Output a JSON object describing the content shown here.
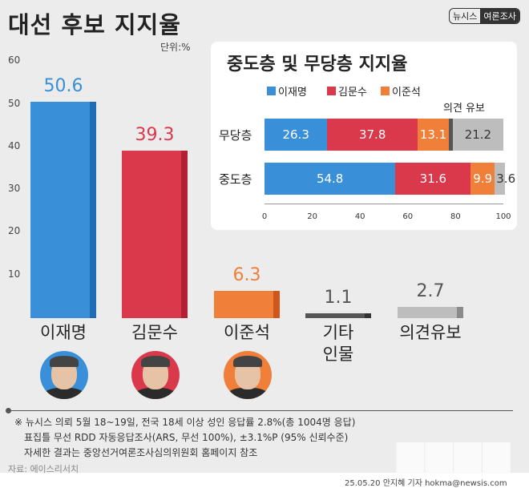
{
  "header": {
    "title": "대선 후보 지지율",
    "badge_left": "뉴시스",
    "badge_right": "여론조사",
    "unit": "단위:%"
  },
  "colors": {
    "lee": "#3a8fd9",
    "kim": "#d9394b",
    "junseok": "#f07f3a",
    "other": "#555555",
    "undecided": "#bdbdbd"
  },
  "chart_data": [
    {
      "type": "bar",
      "title": "대선 후보 지지율",
      "ylabel": "단위:%",
      "ylim": [
        0,
        60
      ],
      "yticks": [
        10,
        20,
        30,
        40,
        50,
        60
      ],
      "categories": [
        "이재명",
        "김문수",
        "이준석",
        "기타 인물",
        "의견유보"
      ],
      "values": [
        50.6,
        39.3,
        6.3,
        1.1,
        2.7
      ],
      "labels": [
        "50.6",
        "39.3",
        "6.3",
        "1.1",
        "2.7"
      ]
    },
    {
      "type": "bar",
      "orientation": "horizontal",
      "stacked": true,
      "title": "중도층 및 무당층 지지율",
      "xlim": [
        0,
        100
      ],
      "xticks": [
        "0",
        "20",
        "40",
        "60",
        "80",
        "100"
      ],
      "categories": [
        "무당층",
        "중도층"
      ],
      "legend": [
        "이재명",
        "김문수",
        "이준석"
      ],
      "extra_label": "의견 유보",
      "series": [
        {
          "name": "이재명",
          "values": [
            26.3,
            54.8
          ]
        },
        {
          "name": "김문수",
          "values": [
            37.8,
            31.6
          ]
        },
        {
          "name": "이준석",
          "values": [
            13.1,
            9.9
          ]
        },
        {
          "values": [
            1.6,
            0.1
          ]
        },
        {
          "name": "의견 유보",
          "values": [
            21.2,
            3.6
          ]
        }
      ],
      "labels": [
        [
          "26.3",
          "37.8",
          "13.1",
          "",
          "21.2"
        ],
        [
          "54.8",
          "31.6",
          "9.9",
          "",
          "3.6"
        ]
      ]
    }
  ],
  "footer": {
    "lines": [
      "※ 뉴시스 의뢰 5월 18~19일, 전국 18세 이상 성인 응답률 2.8%(총 1004명 응답)",
      "표집틀 무선 RDD  자동응답조사(ARS, 무선 100%), ±3.1%P (95% 신뢰수준)",
      "자세한 결과는 중앙선거여론조사심의위원회 홈페이지 참조"
    ],
    "source": "자료: 에이스리서치",
    "credit": "25.05.20 안지혜 기자 hokma@newsis.com",
    "watermark": "뉴시스"
  }
}
